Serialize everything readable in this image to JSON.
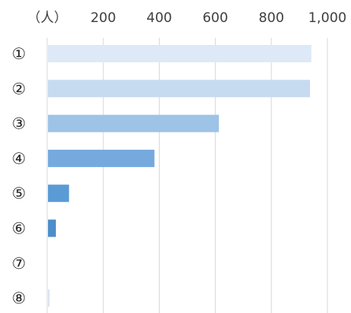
{
  "chart_data": {
    "type": "bar",
    "orientation": "horizontal",
    "unit_label": "（人）",
    "categories": [
      "①",
      "②",
      "③",
      "④",
      "⑤",
      "⑥",
      "⑦",
      "⑧"
    ],
    "values": [
      940,
      935,
      610,
      380,
      75,
      28,
      0,
      5
    ],
    "xlim": [
      0,
      1000
    ],
    "x_ticks": [
      200,
      400,
      600,
      800,
      1000
    ],
    "x_tick_labels": [
      "200",
      "400",
      "600",
      "800",
      "1,000"
    ],
    "grid": true,
    "legend": "none",
    "bar_colors": [
      "#dde9f6",
      "#c6daf0",
      "#9dc3e6",
      "#76a9dd",
      "#5b9bd5",
      "#4d8ecb",
      "#4a86c4",
      "#dbe5f1"
    ],
    "grid_color": "#d9d9d9"
  }
}
